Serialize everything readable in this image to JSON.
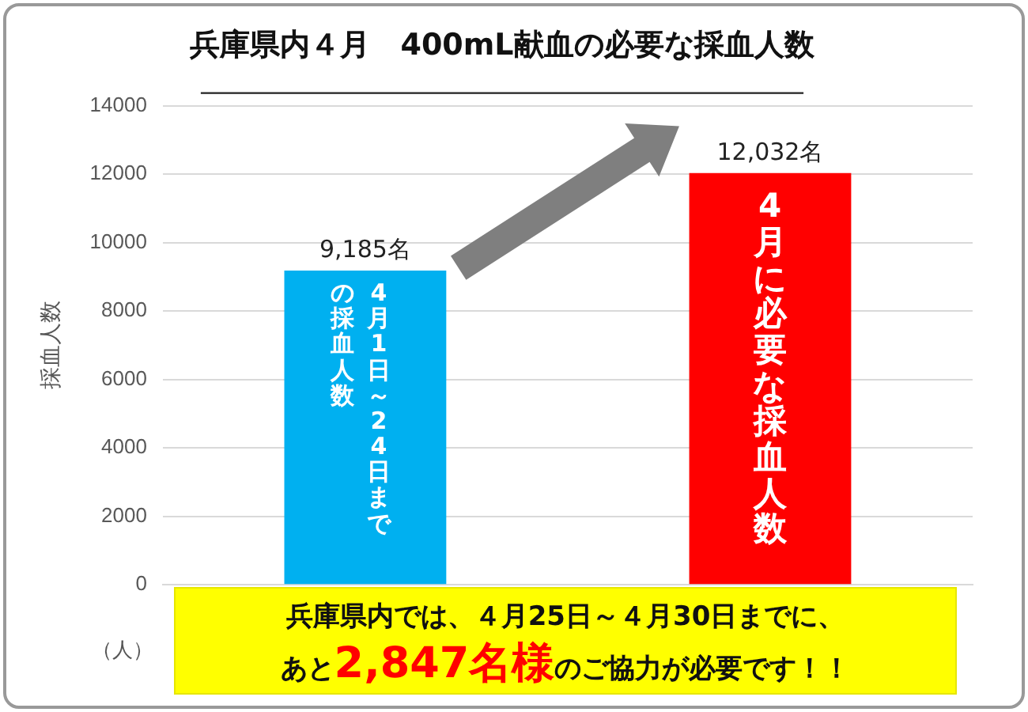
{
  "chart_data": {
    "type": "bar",
    "title": "兵庫県内４月　400mL献血の必要な採血人数",
    "ylabel": "採血人数",
    "categories": [
      null,
      null
    ],
    "values": [
      9185,
      12032
    ],
    "colors": [
      "#00b0f0",
      "#ff0000"
    ],
    "value_labels": [
      "9,185名",
      "12,032名"
    ],
    "ylim": [
      0,
      14000
    ],
    "yticks": [
      0,
      2000,
      4000,
      6000,
      8000,
      10000,
      12000,
      14000
    ],
    "grid": "y",
    "annotations": [
      "（人）",
      "4月1日～24日までの採血人数",
      "4月に必要な採血人数",
      "兵庫県内では、４月25日～４月30日までに、",
      "あと",
      "2,847名様",
      "のご協力が必要です！！"
    ]
  }
}
